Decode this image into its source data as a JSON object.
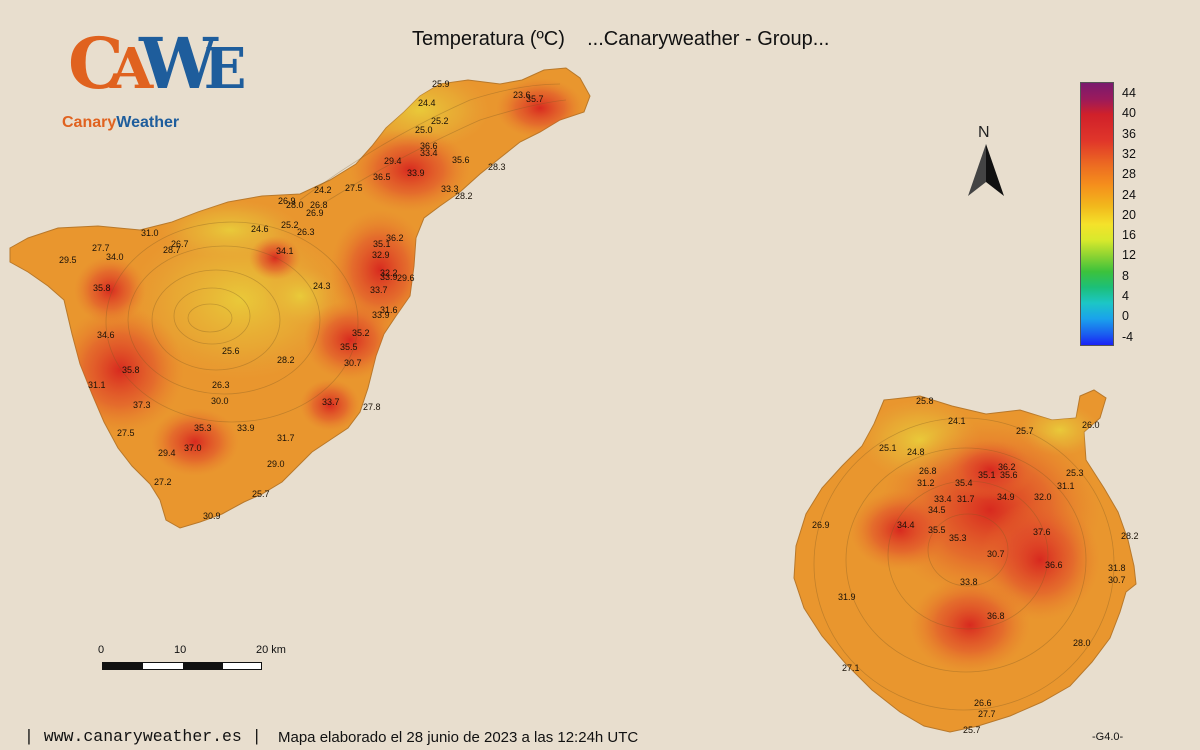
{
  "title": "Temperatura (ºC)    ...Canaryweather - Group...",
  "logo": {
    "letters": [
      "C",
      "A",
      "W",
      "E"
    ],
    "brand_part1": "Canary",
    "brand_part2": "Weather",
    "colors": {
      "orange": "#e0621f",
      "blue": "#1e5d9c"
    }
  },
  "legend": {
    "unit": "ºC",
    "labels": [
      "44",
      "40",
      "36",
      "32",
      "28",
      "24",
      "20",
      "16",
      "12",
      "8",
      "4",
      "0",
      "-4"
    ]
  },
  "north": {
    "letter": "N",
    "icon": "north-arrow-icon"
  },
  "scale": {
    "labels": [
      "0",
      "10",
      "20 km"
    ]
  },
  "footer": {
    "site": "| www.canaryweather.es |",
    "date": "Mapa elaborado el 28 junio de 2023 a las 12:24h UTC",
    "version": "-G4.0-"
  },
  "islands": [
    "tenerife",
    "gran-canaria"
  ],
  "stations_tenerife": [
    "25.9",
    "24.4",
    "23.6",
    "35.7",
    "25.2",
    "25.0",
    "36.6",
    "33.4",
    "35.6",
    "29.4",
    "28.3",
    "36.5",
    "33.9",
    "33.3",
    "27.5",
    "24.2",
    "28.2",
    "26.9",
    "28.0",
    "26.8",
    "26.9",
    "24.6",
    "25.2",
    "26.3",
    "36.2",
    "35.1",
    "31.0",
    "26.7",
    "28.7",
    "27.7",
    "34.0",
    "29.5",
    "34.1",
    "32.9",
    "32.2",
    "33.9",
    "29.6",
    "24.3",
    "33.7",
    "35.8",
    "31.6",
    "33.9",
    "34.6",
    "35.2",
    "25.6",
    "35.5",
    "28.2",
    "30.7",
    "35.8",
    "31.1",
    "26.3",
    "37.3",
    "30.0",
    "33.7",
    "27.8",
    "27.5",
    "35.3",
    "33.9",
    "31.7",
    "37.0",
    "29.4",
    "29.0",
    "27.2",
    "25.7",
    "30.9"
  ],
  "stations_gran_canaria": [
    "25.8",
    "24.1",
    "25.7",
    "26.0",
    "25.1",
    "24.8",
    "36.2",
    "35.1",
    "35.6",
    "26.8",
    "25.3",
    "31.2",
    "35.4",
    "31.1",
    "33.4",
    "31.7",
    "34.9",
    "32.0",
    "34.5",
    "26.9",
    "34.4",
    "35.5",
    "37.6",
    "35.3",
    "28.2",
    "30.7",
    "36.6",
    "31.8",
    "30.7",
    "33.8",
    "31.9",
    "36.8",
    "28.0",
    "27.1",
    "26.6",
    "27.7",
    "25.7"
  ]
}
